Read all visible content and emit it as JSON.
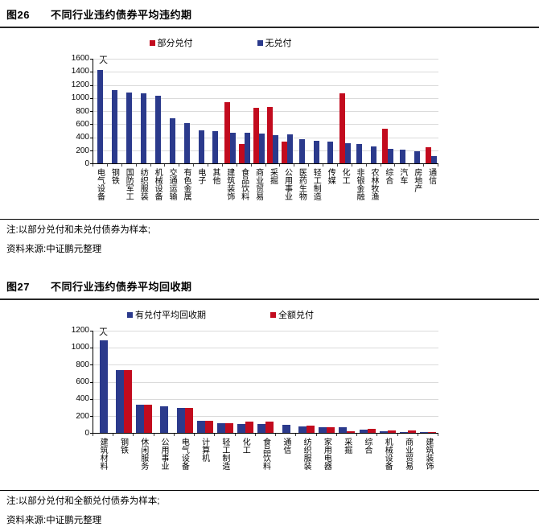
{
  "figures": [
    {
      "tag": "图26",
      "title": "不同行业违约债券平均违约期",
      "note": "注:以部分兑付和未兑付债券为样本;",
      "source": "资料来源:中证鹏元整理"
    },
    {
      "tag": "图27",
      "title": "不同行业违约债券平均回收期",
      "note": "注:以部分兑付和全额兑付债券为样本;",
      "source": "资料来源:中证鹏元整理"
    }
  ],
  "colors": {
    "partial_red": "#C20B1E",
    "navy_blue": "#2B3A8C",
    "gridline": "#DADADA"
  },
  "chart_data": [
    {
      "type": "bar",
      "title": "不同行业违约债券平均违约期",
      "unit_label": "天",
      "ylim": [
        0,
        1600
      ],
      "ytick_step": 200,
      "grid": true,
      "legend_position": "top",
      "categories": [
        "电气设备",
        "钢铁",
        "国防军工",
        "纺织服装",
        "机械设备",
        "交通运输",
        "有色金属",
        "电子",
        "其他",
        "建筑装饰",
        "食品饮料",
        "商业贸易",
        "采掘",
        "公用事业",
        "医药生物",
        "轻工制造",
        "传媒",
        "化工",
        "非银金融",
        "农林牧渔",
        "综合",
        "汽车",
        "房地产",
        "通信"
      ],
      "series": [
        {
          "name": "部分兑付",
          "key": "partial-payment",
          "color": "#C20B1E",
          "values": [
            null,
            null,
            null,
            null,
            null,
            null,
            null,
            null,
            null,
            930,
            300,
            850,
            860,
            330,
            null,
            null,
            null,
            1070,
            null,
            null,
            535,
            null,
            null,
            245
          ]
        },
        {
          "name": "无兑付",
          "key": "no-payment",
          "color": "#2B3A8C",
          "values": [
            1430,
            1120,
            1080,
            1070,
            1040,
            690,
            620,
            505,
            495,
            465,
            470,
            450,
            430,
            440,
            375,
            350,
            330,
            310,
            290,
            255,
            225,
            215,
            190,
            110
          ]
        }
      ]
    },
    {
      "type": "bar",
      "title": "不同行业违约债券平均回收期",
      "unit_label": "天",
      "ylim": [
        0,
        1200
      ],
      "ytick_step": 200,
      "grid": true,
      "legend_position": "top",
      "categories": [
        "建筑材料",
        "钢铁",
        "休闲服务",
        "公用事业",
        "电气设备",
        "计算机",
        "轻工制造",
        "化工",
        "食品饮料",
        "通信",
        "纺织服装",
        "家用电器",
        "采掘",
        "综合",
        "机械设备",
        "商业贸易",
        "建筑装饰"
      ],
      "series": [
        {
          "name": "有兑付平均回收期",
          "key": "recovery-with-payment",
          "color": "#2B3A8C",
          "values": [
            1090,
            735,
            335,
            310,
            290,
            140,
            115,
            105,
            100,
            90,
            80,
            70,
            70,
            35,
            20,
            12,
            8
          ]
        },
        {
          "name": "全额兑付",
          "key": "full-payment",
          "color": "#C20B1E",
          "values": [
            null,
            735,
            335,
            null,
            290,
            140,
            110,
            135,
            130,
            null,
            85,
            70,
            20,
            50,
            25,
            25,
            5
          ]
        }
      ]
    }
  ]
}
